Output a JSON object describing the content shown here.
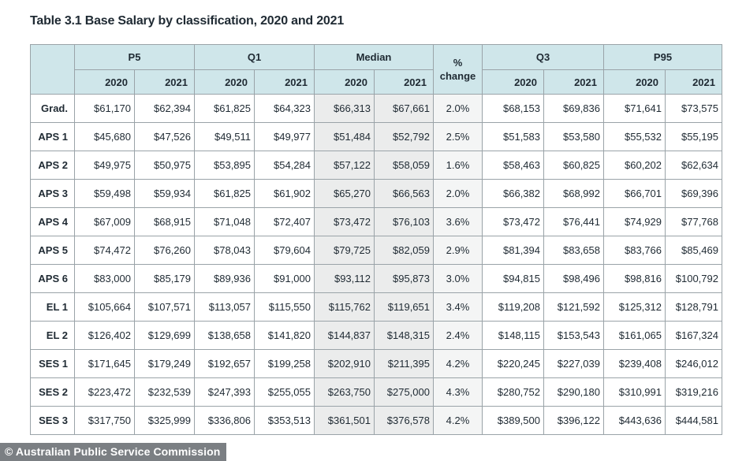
{
  "title": "Table 3.1 Base Salary by classification, 2020 and 2021",
  "header": {
    "p5": "P5",
    "q1": "Q1",
    "median": "Median",
    "pct_line1": "%",
    "pct_line2": "change",
    "q3": "Q3",
    "p95": "P95",
    "y2020": "2020",
    "y2021": "2021"
  },
  "rows": [
    {
      "label": "Grad.",
      "p5_2020": "$61,170",
      "p5_2021": "$62,394",
      "q1_2020": "$61,825",
      "q1_2021": "$64,323",
      "med_2020": "$66,313",
      "med_2021": "$67,661",
      "pct": "2.0%",
      "q3_2020": "$68,153",
      "q3_2021": "$69,836",
      "p95_2020": "$71,641",
      "p95_2021": "$73,575"
    },
    {
      "label": "APS 1",
      "p5_2020": "$45,680",
      "p5_2021": "$47,526",
      "q1_2020": "$49,511",
      "q1_2021": "$49,977",
      "med_2020": "$51,484",
      "med_2021": "$52,792",
      "pct": "2.5%",
      "q3_2020": "$51,583",
      "q3_2021": "$53,580",
      "p95_2020": "$55,532",
      "p95_2021": "$55,195"
    },
    {
      "label": "APS 2",
      "p5_2020": "$49,975",
      "p5_2021": "$50,975",
      "q1_2020": "$53,895",
      "q1_2021": "$54,284",
      "med_2020": "$57,122",
      "med_2021": "$58,059",
      "pct": "1.6%",
      "q3_2020": "$58,463",
      "q3_2021": "$60,825",
      "p95_2020": "$60,202",
      "p95_2021": "$62,634"
    },
    {
      "label": "APS 3",
      "p5_2020": "$59,498",
      "p5_2021": "$59,934",
      "q1_2020": "$61,825",
      "q1_2021": "$61,902",
      "med_2020": "$65,270",
      "med_2021": "$66,563",
      "pct": "2.0%",
      "q3_2020": "$66,382",
      "q3_2021": "$68,992",
      "p95_2020": "$66,701",
      "p95_2021": "$69,396"
    },
    {
      "label": "APS 4",
      "p5_2020": "$67,009",
      "p5_2021": "$68,915",
      "q1_2020": "$71,048",
      "q1_2021": "$72,407",
      "med_2020": "$73,472",
      "med_2021": "$76,103",
      "pct": "3.6%",
      "q3_2020": "$73,472",
      "q3_2021": "$76,441",
      "p95_2020": "$74,929",
      "p95_2021": "$77,768"
    },
    {
      "label": "APS 5",
      "p5_2020": "$74,472",
      "p5_2021": "$76,260",
      "q1_2020": "$78,043",
      "q1_2021": "$79,604",
      "med_2020": "$79,725",
      "med_2021": "$82,059",
      "pct": "2.9%",
      "q3_2020": "$81,394",
      "q3_2021": "$83,658",
      "p95_2020": "$83,766",
      "p95_2021": "$85,469"
    },
    {
      "label": "APS 6",
      "p5_2020": "$83,000",
      "p5_2021": "$85,179",
      "q1_2020": "$89,936",
      "q1_2021": "$91,000",
      "med_2020": "$93,112",
      "med_2021": "$95,873",
      "pct": "3.0%",
      "q3_2020": "$94,815",
      "q3_2021": "$98,496",
      "p95_2020": "$98,816",
      "p95_2021": "$100,792"
    },
    {
      "label": "EL 1",
      "p5_2020": "$105,664",
      "p5_2021": "$107,571",
      "q1_2020": "$113,057",
      "q1_2021": "$115,550",
      "med_2020": "$115,762",
      "med_2021": "$119,651",
      "pct": "3.4%",
      "q3_2020": "$119,208",
      "q3_2021": "$121,592",
      "p95_2020": "$125,312",
      "p95_2021": "$128,791"
    },
    {
      "label": "EL 2",
      "p5_2020": "$126,402",
      "p5_2021": "$129,699",
      "q1_2020": "$138,658",
      "q1_2021": "$141,820",
      "med_2020": "$144,837",
      "med_2021": "$148,315",
      "pct": "2.4%",
      "q3_2020": "$148,115",
      "q3_2021": "$153,543",
      "p95_2020": "$161,065",
      "p95_2021": "$167,324"
    },
    {
      "label": "SES 1",
      "p5_2020": "$171,645",
      "p5_2021": "$179,249",
      "q1_2020": "$192,657",
      "q1_2021": "$199,258",
      "med_2020": "$202,910",
      "med_2021": "$211,395",
      "pct": "4.2%",
      "q3_2020": "$220,245",
      "q3_2021": "$227,039",
      "p95_2020": "$239,408",
      "p95_2021": "$246,012"
    },
    {
      "label": "SES 2",
      "p5_2020": "$223,472",
      "p5_2021": "$232,539",
      "q1_2020": "$247,393",
      "q1_2021": "$255,055",
      "med_2020": "$263,750",
      "med_2021": "$275,000",
      "pct": "4.3%",
      "q3_2020": "$280,752",
      "q3_2021": "$290,180",
      "p95_2020": "$310,991",
      "p95_2021": "$319,216"
    },
    {
      "label": "SES 3",
      "p5_2020": "$317,750",
      "p5_2021": "$325,999",
      "q1_2020": "$336,806",
      "q1_2021": "$353,513",
      "med_2020": "$361,501",
      "med_2021": "$376,578",
      "pct": "4.2%",
      "q3_2020": "$389,500",
      "q3_2021": "$396,122",
      "p95_2020": "$443,636",
      "p95_2021": "$444,581"
    }
  ],
  "credit": "© Australian Public Service Commission"
}
